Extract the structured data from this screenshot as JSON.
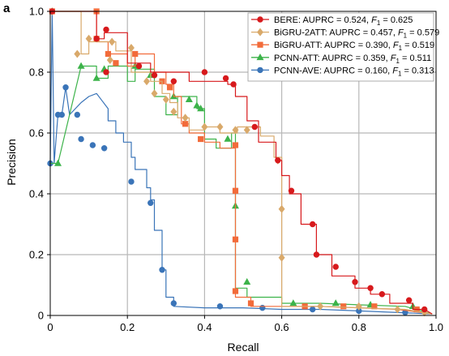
{
  "panel_label": "a",
  "chart_data": {
    "type": "line",
    "title": "",
    "xlabel": "Recall",
    "ylabel": "Precision",
    "xlim": [
      0,
      1.0
    ],
    "ylim": [
      0,
      1.0
    ],
    "xticks": [
      0,
      0.2,
      0.4,
      0.6,
      0.8,
      1.0
    ],
    "yticks": [
      0,
      0.2,
      0.4,
      0.6,
      0.8,
      1.0
    ],
    "xtick_labels": [
      "0",
      "0.2",
      "0.4",
      "0.6",
      "0.8",
      "1.0"
    ],
    "ytick_labels": [
      "0",
      "0.2",
      "0.4",
      "0.6",
      "0.8",
      "1.0"
    ],
    "grid": true,
    "legend_position": "top-right",
    "series": [
      {
        "name": "BERE",
        "legend_prefix": "BERE: AUPRC = 0.524, ",
        "legend_f1": " = 0.625",
        "color": "#d7191c",
        "marker": "circle",
        "line": [
          [
            0.005,
            1.0
          ],
          [
            0.12,
            1.0
          ],
          [
            0.12,
            0.91
          ],
          [
            0.14,
            0.91
          ],
          [
            0.14,
            0.93
          ],
          [
            0.2,
            0.93
          ],
          [
            0.2,
            0.83
          ],
          [
            0.26,
            0.83
          ],
          [
            0.26,
            0.8
          ],
          [
            0.36,
            0.8
          ],
          [
            0.36,
            0.77
          ],
          [
            0.46,
            0.77
          ],
          [
            0.46,
            0.76
          ],
          [
            0.48,
            0.76
          ],
          [
            0.48,
            0.72
          ],
          [
            0.51,
            0.72
          ],
          [
            0.51,
            0.64
          ],
          [
            0.54,
            0.64
          ],
          [
            0.54,
            0.57
          ],
          [
            0.585,
            0.57
          ],
          [
            0.585,
            0.51
          ],
          [
            0.6,
            0.51
          ],
          [
            0.6,
            0.46
          ],
          [
            0.62,
            0.46
          ],
          [
            0.62,
            0.4
          ],
          [
            0.65,
            0.4
          ],
          [
            0.65,
            0.3
          ],
          [
            0.69,
            0.3
          ],
          [
            0.69,
            0.2
          ],
          [
            0.73,
            0.2
          ],
          [
            0.73,
            0.13
          ],
          [
            0.79,
            0.13
          ],
          [
            0.79,
            0.09
          ],
          [
            0.83,
            0.09
          ],
          [
            0.83,
            0.07
          ],
          [
            0.88,
            0.07
          ],
          [
            0.88,
            0.04
          ],
          [
            0.94,
            0.04
          ],
          [
            0.94,
            0.02
          ],
          [
            0.97,
            0.02
          ],
          [
            0.99,
            0.005
          ]
        ],
        "points": [
          [
            0.005,
            1.0
          ],
          [
            0.12,
            0.91
          ],
          [
            0.145,
            0.94
          ],
          [
            0.145,
            0.8
          ],
          [
            0.23,
            0.82
          ],
          [
            0.27,
            0.79
          ],
          [
            0.32,
            0.77
          ],
          [
            0.4,
            0.8
          ],
          [
            0.455,
            0.78
          ],
          [
            0.475,
            0.76
          ],
          [
            0.53,
            0.62
          ],
          [
            0.59,
            0.51
          ],
          [
            0.625,
            0.41
          ],
          [
            0.68,
            0.3
          ],
          [
            0.69,
            0.2
          ],
          [
            0.74,
            0.16
          ],
          [
            0.79,
            0.11
          ],
          [
            0.83,
            0.09
          ],
          [
            0.86,
            0.07
          ],
          [
            0.93,
            0.05
          ],
          [
            0.97,
            0.02
          ]
        ]
      },
      {
        "name": "BiGRU-2ATT",
        "legend_prefix": "BiGRU-2ATT: AUPRC = 0.457, ",
        "legend_f1": " = 0.579",
        "color": "#d9a96a",
        "marker": "diamond",
        "line": [
          [
            0.005,
            1.0
          ],
          [
            0.08,
            1.0
          ],
          [
            0.08,
            0.86
          ],
          [
            0.1,
            0.86
          ],
          [
            0.1,
            0.9
          ],
          [
            0.17,
            0.9
          ],
          [
            0.17,
            0.87
          ],
          [
            0.21,
            0.87
          ],
          [
            0.21,
            0.8
          ],
          [
            0.26,
            0.8
          ],
          [
            0.26,
            0.77
          ],
          [
            0.29,
            0.77
          ],
          [
            0.29,
            0.73
          ],
          [
            0.31,
            0.73
          ],
          [
            0.31,
            0.7
          ],
          [
            0.33,
            0.7
          ],
          [
            0.33,
            0.65
          ],
          [
            0.36,
            0.65
          ],
          [
            0.36,
            0.61
          ],
          [
            0.4,
            0.61
          ],
          [
            0.4,
            0.62
          ],
          [
            0.44,
            0.62
          ],
          [
            0.44,
            0.6
          ],
          [
            0.485,
            0.6
          ],
          [
            0.485,
            0.62
          ],
          [
            0.545,
            0.62
          ],
          [
            0.545,
            0.59
          ],
          [
            0.58,
            0.59
          ],
          [
            0.58,
            0.52
          ],
          [
            0.6,
            0.52
          ],
          [
            0.6,
            0.35
          ],
          [
            0.6,
            0.19
          ],
          [
            0.6,
            0.03
          ],
          [
            0.7,
            0.03
          ],
          [
            0.8,
            0.025
          ],
          [
            0.92,
            0.02
          ],
          [
            0.99,
            0.005
          ]
        ],
        "points": [
          [
            0.005,
            1.0
          ],
          [
            0.07,
            0.86
          ],
          [
            0.1,
            0.91
          ],
          [
            0.155,
            0.84
          ],
          [
            0.16,
            0.9
          ],
          [
            0.21,
            0.88
          ],
          [
            0.25,
            0.77
          ],
          [
            0.27,
            0.73
          ],
          [
            0.3,
            0.71
          ],
          [
            0.32,
            0.67
          ],
          [
            0.35,
            0.65
          ],
          [
            0.4,
            0.62
          ],
          [
            0.44,
            0.62
          ],
          [
            0.48,
            0.61
          ],
          [
            0.51,
            0.61
          ],
          [
            0.59,
            0.51
          ],
          [
            0.6,
            0.35
          ],
          [
            0.6,
            0.19
          ],
          [
            0.7,
            0.03
          ],
          [
            0.8,
            0.03
          ],
          [
            0.9,
            0.02
          ],
          [
            0.97,
            0.01
          ]
        ]
      },
      {
        "name": "BiGRU-ATT",
        "legend_prefix": "BiGRU-ATT: AUPRC = 0.390, ",
        "legend_f1": " = 0.519",
        "color": "#f26b3a",
        "marker": "square",
        "line": [
          [
            0.005,
            1.0
          ],
          [
            0.12,
            1.0
          ],
          [
            0.12,
            0.9
          ],
          [
            0.15,
            0.9
          ],
          [
            0.15,
            0.86
          ],
          [
            0.2,
            0.86
          ],
          [
            0.2,
            0.82
          ],
          [
            0.22,
            0.82
          ],
          [
            0.22,
            0.86
          ],
          [
            0.27,
            0.86
          ],
          [
            0.27,
            0.8
          ],
          [
            0.3,
            0.8
          ],
          [
            0.3,
            0.76
          ],
          [
            0.32,
            0.76
          ],
          [
            0.32,
            0.72
          ],
          [
            0.34,
            0.72
          ],
          [
            0.34,
            0.63
          ],
          [
            0.36,
            0.63
          ],
          [
            0.36,
            0.6
          ],
          [
            0.4,
            0.6
          ],
          [
            0.4,
            0.57
          ],
          [
            0.44,
            0.57
          ],
          [
            0.44,
            0.55
          ],
          [
            0.48,
            0.55
          ],
          [
            0.48,
            0.41
          ],
          [
            0.48,
            0.25
          ],
          [
            0.48,
            0.1
          ],
          [
            0.48,
            0.06
          ],
          [
            0.52,
            0.06
          ],
          [
            0.52,
            0.03
          ],
          [
            0.6,
            0.03
          ],
          [
            0.7,
            0.03
          ],
          [
            0.8,
            0.025
          ],
          [
            0.9,
            0.02
          ],
          [
            0.99,
            0.005
          ]
        ],
        "points": [
          [
            0.005,
            1.0
          ],
          [
            0.12,
            1.0
          ],
          [
            0.12,
            0.91
          ],
          [
            0.15,
            0.86
          ],
          [
            0.17,
            0.83
          ],
          [
            0.22,
            0.86
          ],
          [
            0.29,
            0.77
          ],
          [
            0.31,
            0.75
          ],
          [
            0.35,
            0.63
          ],
          [
            0.39,
            0.58
          ],
          [
            0.48,
            0.56
          ],
          [
            0.48,
            0.41
          ],
          [
            0.48,
            0.25
          ],
          [
            0.48,
            0.08
          ],
          [
            0.52,
            0.04
          ],
          [
            0.66,
            0.03
          ],
          [
            0.76,
            0.03
          ],
          [
            0.84,
            0.03
          ],
          [
            0.95,
            0.02
          ]
        ]
      },
      {
        "name": "PCNN-ATT",
        "legend_prefix": "PCNN-ATT: AUPRC = 0.359, ",
        "legend_f1": " = 0.511",
        "color": "#3cb34a",
        "marker": "triangle",
        "line": [
          [
            0.0,
            0.5
          ],
          [
            0.02,
            0.5
          ],
          [
            0.08,
            0.82
          ],
          [
            0.12,
            0.82
          ],
          [
            0.12,
            0.78
          ],
          [
            0.15,
            0.78
          ],
          [
            0.15,
            0.82
          ],
          [
            0.2,
            0.82
          ],
          [
            0.2,
            0.77
          ],
          [
            0.22,
            0.77
          ],
          [
            0.22,
            0.81
          ],
          [
            0.27,
            0.81
          ],
          [
            0.27,
            0.72
          ],
          [
            0.3,
            0.72
          ],
          [
            0.3,
            0.66
          ],
          [
            0.33,
            0.66
          ],
          [
            0.33,
            0.72
          ],
          [
            0.38,
            0.72
          ],
          [
            0.38,
            0.68
          ],
          [
            0.4,
            0.68
          ],
          [
            0.4,
            0.58
          ],
          [
            0.43,
            0.58
          ],
          [
            0.43,
            0.55
          ],
          [
            0.47,
            0.55
          ],
          [
            0.47,
            0.6
          ],
          [
            0.48,
            0.6
          ],
          [
            0.48,
            0.36
          ],
          [
            0.48,
            0.09
          ],
          [
            0.51,
            0.09
          ],
          [
            0.51,
            0.06
          ],
          [
            0.6,
            0.06
          ],
          [
            0.6,
            0.04
          ],
          [
            0.7,
            0.04
          ],
          [
            0.8,
            0.035
          ],
          [
            0.92,
            0.03
          ],
          [
            0.99,
            0.005
          ]
        ],
        "points": [
          [
            0.02,
            0.5
          ],
          [
            0.08,
            0.82
          ],
          [
            0.12,
            0.78
          ],
          [
            0.14,
            0.81
          ],
          [
            0.22,
            0.82
          ],
          [
            0.26,
            0.79
          ],
          [
            0.32,
            0.72
          ],
          [
            0.36,
            0.71
          ],
          [
            0.38,
            0.69
          ],
          [
            0.39,
            0.68
          ],
          [
            0.46,
            0.58
          ],
          [
            0.48,
            0.36
          ],
          [
            0.51,
            0.11
          ],
          [
            0.63,
            0.04
          ],
          [
            0.74,
            0.04
          ],
          [
            0.83,
            0.035
          ],
          [
            0.94,
            0.03
          ]
        ]
      },
      {
        "name": "PCNN-AVE",
        "legend_prefix": "PCNN-AVE: AUPRC = 0.160, ",
        "legend_f1": " = 0.313",
        "color": "#3a74b8",
        "marker": "circle",
        "line": [
          [
            0.0,
            0.5
          ],
          [
            0.005,
            1.0
          ],
          [
            0.01,
            0.5
          ],
          [
            0.02,
            0.66
          ],
          [
            0.03,
            0.66
          ],
          [
            0.04,
            0.75
          ],
          [
            0.05,
            0.66
          ],
          [
            0.08,
            0.7
          ],
          [
            0.1,
            0.72
          ],
          [
            0.12,
            0.73
          ],
          [
            0.15,
            0.68
          ],
          [
            0.15,
            0.64
          ],
          [
            0.17,
            0.64
          ],
          [
            0.17,
            0.6
          ],
          [
            0.19,
            0.6
          ],
          [
            0.19,
            0.57
          ],
          [
            0.21,
            0.57
          ],
          [
            0.21,
            0.52
          ],
          [
            0.22,
            0.52
          ],
          [
            0.22,
            0.48
          ],
          [
            0.25,
            0.48
          ],
          [
            0.25,
            0.42
          ],
          [
            0.26,
            0.42
          ],
          [
            0.26,
            0.38
          ],
          [
            0.27,
            0.38
          ],
          [
            0.27,
            0.28
          ],
          [
            0.29,
            0.28
          ],
          [
            0.29,
            0.15
          ],
          [
            0.3,
            0.15
          ],
          [
            0.3,
            0.06
          ],
          [
            0.32,
            0.06
          ],
          [
            0.32,
            0.03
          ],
          [
            0.4,
            0.025
          ],
          [
            0.5,
            0.025
          ],
          [
            0.6,
            0.02
          ],
          [
            0.7,
            0.02
          ],
          [
            0.8,
            0.015
          ],
          [
            0.99,
            0.005
          ]
        ],
        "points": [
          [
            0.0,
            0.5
          ],
          [
            0.005,
            1.0
          ],
          [
            0.02,
            0.66
          ],
          [
            0.03,
            0.66
          ],
          [
            0.04,
            0.75
          ],
          [
            0.07,
            0.66
          ],
          [
            0.08,
            0.58
          ],
          [
            0.11,
            0.56
          ],
          [
            0.14,
            0.55
          ],
          [
            0.21,
            0.44
          ],
          [
            0.26,
            0.37
          ],
          [
            0.29,
            0.15
          ],
          [
            0.32,
            0.04
          ],
          [
            0.44,
            0.03
          ],
          [
            0.55,
            0.025
          ],
          [
            0.68,
            0.02
          ],
          [
            0.8,
            0.015
          ],
          [
            0.92,
            0.01
          ]
        ]
      }
    ]
  }
}
